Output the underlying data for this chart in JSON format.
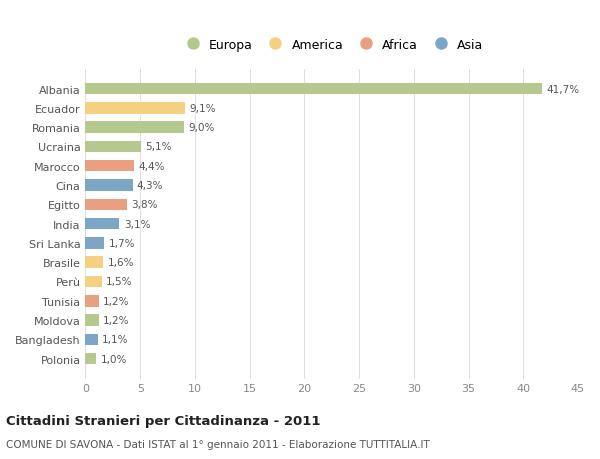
{
  "categories": [
    "Albania",
    "Ecuador",
    "Romania",
    "Ucraina",
    "Marocco",
    "Cina",
    "Egitto",
    "India",
    "Sri Lanka",
    "Brasile",
    "Perù",
    "Tunisia",
    "Moldova",
    "Bangladesh",
    "Polonia"
  ],
  "values": [
    41.7,
    9.1,
    9.0,
    5.1,
    4.4,
    4.3,
    3.8,
    3.1,
    1.7,
    1.6,
    1.5,
    1.2,
    1.2,
    1.1,
    1.0
  ],
  "labels": [
    "41,7%",
    "9,1%",
    "9,0%",
    "5,1%",
    "4,4%",
    "4,3%",
    "3,8%",
    "3,1%",
    "1,7%",
    "1,6%",
    "1,5%",
    "1,2%",
    "1,2%",
    "1,1%",
    "1,0%"
  ],
  "continents": [
    "Europa",
    "America",
    "Europa",
    "Europa",
    "Africa",
    "Asia",
    "Africa",
    "Asia",
    "Asia",
    "America",
    "America",
    "Africa",
    "Europa",
    "Asia",
    "Europa"
  ],
  "colors": {
    "Europa": "#b5c98e",
    "America": "#f5d080",
    "Africa": "#e8a080",
    "Asia": "#7ba7c4"
  },
  "legend_order": [
    "Europa",
    "America",
    "Africa",
    "Asia"
  ],
  "xlim": [
    0,
    45
  ],
  "xticks": [
    0,
    5,
    10,
    15,
    20,
    25,
    30,
    35,
    40,
    45
  ],
  "title": "Cittadini Stranieri per Cittadinanza - 2011",
  "subtitle": "COMUNE DI SAVONA - Dati ISTAT al 1° gennaio 2011 - Elaborazione TUTTITALIA.IT",
  "background_color": "#ffffff",
  "bar_height": 0.6
}
